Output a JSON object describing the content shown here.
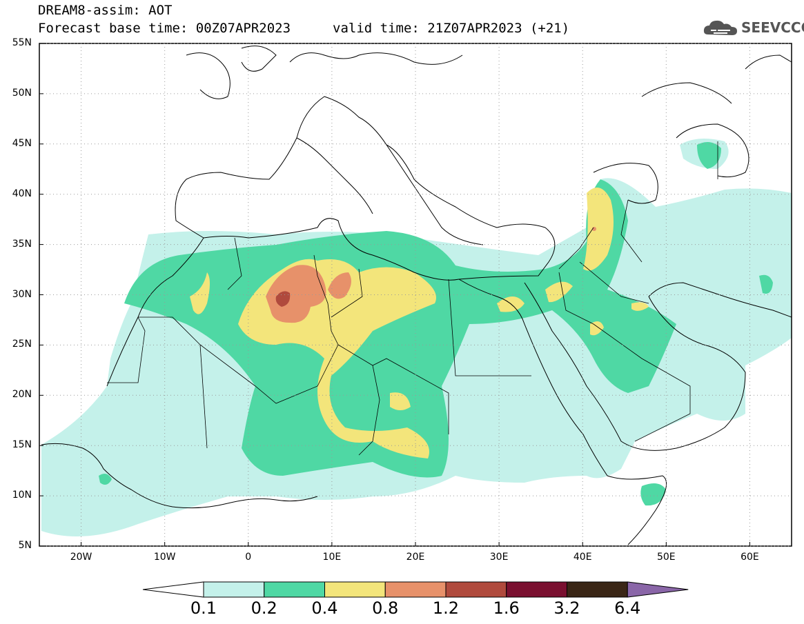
{
  "header": {
    "title": "DREAM8-assim: AOT",
    "base_time": "Forecast base time: 00Z07APR2023",
    "valid_time": "valid time: 21Z07APR2023 (+21)",
    "logo_text": "SEEVCCC",
    "logo_icon": "cloud-icon"
  },
  "map": {
    "projection": "cylindrical",
    "lon_range": [
      -25,
      65
    ],
    "lat_range": [
      5,
      55
    ],
    "grid": "dotted",
    "lat_labels": [
      "55N",
      "50N",
      "45N",
      "40N",
      "35N",
      "30N",
      "25N",
      "20N",
      "15N",
      "10N",
      "5N"
    ],
    "lon_labels": [
      "20W",
      "10W",
      "0",
      "10E",
      "20E",
      "30E",
      "40E",
      "50E",
      "60E"
    ]
  },
  "colorbar": {
    "labels": [
      "0.1",
      "0.2",
      "0.4",
      "0.8",
      "1.2",
      "1.6",
      "3.2",
      "6.4"
    ],
    "colors": [
      "#c4f1ea",
      "#4fd8a4",
      "#f3e57b",
      "#e7916a",
      "#b04a3d",
      "#7a1030",
      "#3a2616",
      "#8a66a8"
    ]
  }
}
